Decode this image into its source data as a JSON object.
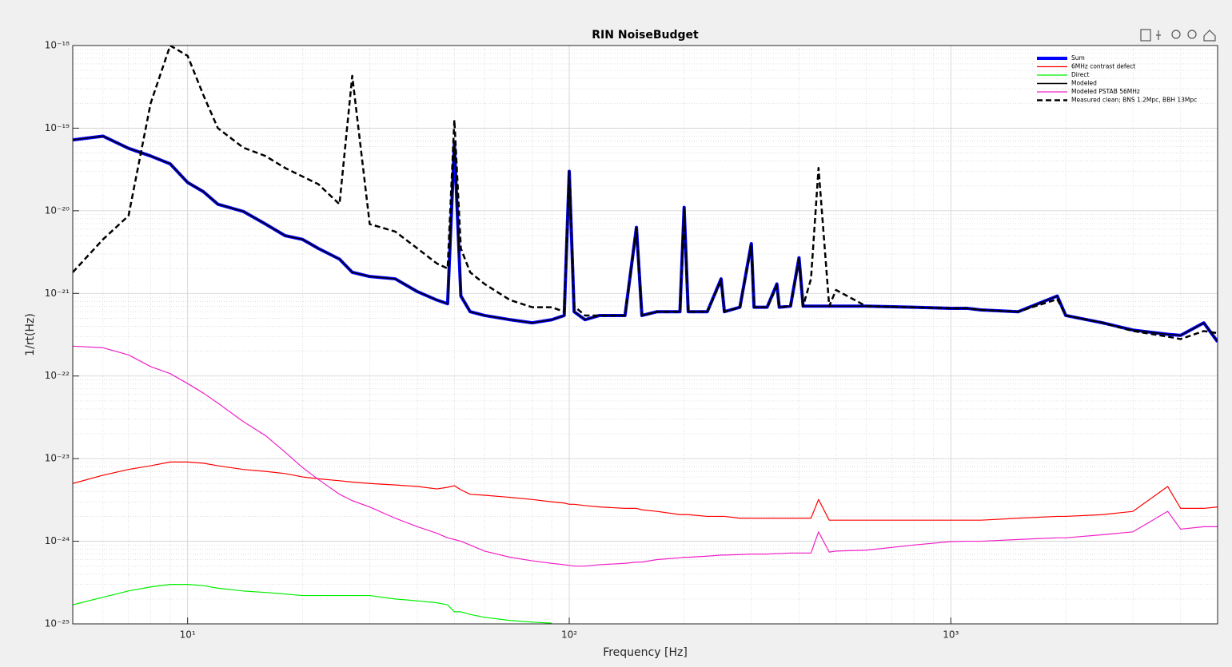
{
  "chart_data": {
    "type": "line",
    "title": "RIN NoiseBudget",
    "x_label": "Frequency [Hz]",
    "y_label": "1/rt(Hz)",
    "log_x": true,
    "log_y": true,
    "grid": true,
    "minor_grid": true,
    "legend": "upper right",
    "xlim": [
      5,
      5000
    ],
    "ylim": [
      1e-25,
      1e-18
    ],
    "xticks": [
      {
        "value": 10,
        "label": "10¹"
      },
      {
        "value": 100,
        "label": "10²"
      },
      {
        "value": 1000,
        "label": "10³"
      }
    ],
    "yticks": [
      {
        "value": 1e-25,
        "label": "10⁻²⁵"
      },
      {
        "value": 1e-24,
        "label": "10⁻²⁴"
      },
      {
        "value": 1e-23,
        "label": "10⁻²³"
      },
      {
        "value": 1e-22,
        "label": "10⁻²²"
      },
      {
        "value": 1e-21,
        "label": "10⁻²¹"
      },
      {
        "value": 1e-20,
        "label": "10⁻²⁰"
      },
      {
        "value": 1e-19,
        "label": "10⁻¹⁹"
      },
      {
        "value": 1e-18,
        "label": "10⁻¹⁸"
      }
    ],
    "x": [
      5,
      6,
      7,
      8,
      9,
      10,
      11,
      12,
      14,
      16,
      18,
      20,
      22,
      25,
      27,
      30,
      35,
      40,
      45,
      48,
      50,
      52,
      55,
      60,
      70,
      80,
      90,
      97,
      100,
      103,
      110,
      120,
      140,
      150,
      155,
      170,
      195,
      200,
      205,
      230,
      250,
      255,
      280,
      300,
      305,
      330,
      350,
      355,
      380,
      400,
      410,
      430,
      450,
      480,
      500,
      600,
      800,
      1000,
      1100,
      1200,
      1500,
      1900,
      2000,
      2500,
      3000,
      3700,
      4000,
      4600,
      5000
    ],
    "series": [
      {
        "name": "Sum",
        "color": "#0000ff",
        "line_width": 4,
        "dash": "solid",
        "values": [
          7.2e-20,
          8e-20,
          5.7e-20,
          4.6e-20,
          3.7e-20,
          2.2e-20,
          1.7e-20,
          1.2e-20,
          9.8e-21,
          6.9e-21,
          5e-21,
          4.5e-21,
          3.5e-21,
          2.6e-21,
          1.8e-21,
          1.6e-21,
          1.5e-21,
          1.05e-21,
          8.3e-22,
          7.5e-22,
          6.5e-20,
          9.3e-22,
          6e-22,
          5.4e-22,
          4.8e-22,
          4.4e-22,
          4.8e-22,
          5.4e-22,
          3e-20,
          6e-22,
          4.8e-22,
          5.4e-22,
          5.4e-22,
          6.3e-21,
          5.4e-22,
          6e-22,
          6e-22,
          1.1e-20,
          6e-22,
          6e-22,
          1.5e-21,
          6e-22,
          6.8e-22,
          4e-21,
          6.8e-22,
          6.8e-22,
          1.3e-21,
          6.8e-22,
          7e-22,
          2.7e-21,
          7e-22,
          7e-22,
          7e-22,
          7e-22,
          7e-22,
          7e-22,
          6.8e-22,
          6.6e-22,
          6.6e-22,
          6.3e-22,
          6e-22,
          9.3e-22,
          5.4e-22,
          4.4e-22,
          3.6e-22,
          3.2e-22,
          3.1e-22,
          4.4e-22,
          2.6e-22
        ]
      },
      {
        "name": "6MHz contrast defect",
        "color": "#ff0000",
        "line_width": 1.2,
        "dash": "solid",
        "values": [
          5e-24,
          6.3e-24,
          7.4e-24,
          8.2e-24,
          9.1e-24,
          9.1e-24,
          8.8e-24,
          8.2e-24,
          7.4e-24,
          7e-24,
          6.6e-24,
          6e-24,
          5.7e-24,
          5.4e-24,
          5.2e-24,
          5e-24,
          4.8e-24,
          4.6e-24,
          4.3e-24,
          4.5e-24,
          4.7e-24,
          4.2e-24,
          3.7e-24,
          3.6e-24,
          3.4e-24,
          3.2e-24,
          3e-24,
          2.9e-24,
          2.8e-24,
          2.8e-24,
          2.7e-24,
          2.6e-24,
          2.5e-24,
          2.5e-24,
          2.4e-24,
          2.3e-24,
          2.1e-24,
          2.1e-24,
          2.1e-24,
          2e-24,
          2e-24,
          2e-24,
          1.9e-24,
          1.9e-24,
          1.9e-24,
          1.9e-24,
          1.9e-24,
          1.9e-24,
          1.9e-24,
          1.9e-24,
          1.9e-24,
          1.9e-24,
          3.2e-24,
          1.8e-24,
          1.8e-24,
          1.8e-24,
          1.8e-24,
          1.8e-24,
          1.8e-24,
          1.8e-24,
          1.9e-24,
          2e-24,
          2e-24,
          2.1e-24,
          2.3e-24,
          4.6e-24,
          2.5e-24,
          2.5e-24,
          2.6e-24
        ]
      },
      {
        "name": "Direct",
        "color": "#00ee00",
        "line_width": 1.2,
        "dash": "solid",
        "values": [
          1.7e-25,
          2.1e-25,
          2.5e-25,
          2.8e-25,
          3e-25,
          3e-25,
          2.9e-25,
          2.7e-25,
          2.5e-25,
          2.4e-25,
          2.3e-25,
          2.2e-25,
          2.2e-25,
          2.2e-25,
          2.2e-25,
          2.2e-25,
          2e-25,
          1.9e-25,
          1.8e-25,
          1.7e-25,
          1.4e-25,
          1.4e-25,
          1.3e-25,
          1.2e-25,
          1.1e-25,
          1.05e-25,
          1.02e-25,
          null,
          null,
          null,
          null,
          null,
          null,
          null,
          null,
          null,
          null,
          null,
          null,
          null,
          null,
          null,
          null,
          null,
          null,
          null,
          null,
          null,
          null,
          null,
          null,
          null,
          null,
          null,
          null,
          null,
          null,
          null,
          null,
          null,
          null,
          null,
          null,
          null,
          null,
          null,
          null,
          null,
          null
        ]
      },
      {
        "name": "Modeled",
        "color": "#000000",
        "line_width": 1.5,
        "dash": "solid",
        "values": [
          7.2e-20,
          8e-20,
          5.7e-20,
          4.6e-20,
          3.7e-20,
          2.2e-20,
          1.7e-20,
          1.2e-20,
          9.8e-21,
          6.9e-21,
          5e-21,
          4.5e-21,
          3.5e-21,
          2.6e-21,
          1.8e-21,
          1.6e-21,
          1.5e-21,
          1.05e-21,
          8.3e-22,
          7.5e-22,
          6.5e-20,
          9.3e-22,
          6e-22,
          5.4e-22,
          4.8e-22,
          4.4e-22,
          4.8e-22,
          5.4e-22,
          3e-20,
          6e-22,
          4.8e-22,
          5.4e-22,
          5.4e-22,
          6.3e-21,
          5.4e-22,
          6e-22,
          6e-22,
          1.1e-20,
          6e-22,
          6e-22,
          1.5e-21,
          6e-22,
          6.8e-22,
          4e-21,
          6.8e-22,
          6.8e-22,
          1.3e-21,
          6.8e-22,
          7e-22,
          2.7e-21,
          7e-22,
          7e-22,
          7e-22,
          7e-22,
          7e-22,
          7e-22,
          6.8e-22,
          6.6e-22,
          6.6e-22,
          6.3e-22,
          6e-22,
          9.3e-22,
          5.4e-22,
          4.4e-22,
          3.6e-22,
          3.2e-22,
          3.1e-22,
          4.4e-22,
          2.6e-22
        ]
      },
      {
        "name": "Modeled PSTAB 56MHz",
        "color": "#f020c8",
        "line_width": 1.2,
        "dash": "solid",
        "values": [
          2.3e-22,
          2.2e-22,
          1.8e-22,
          1.3e-22,
          1.07e-22,
          8.1e-23,
          6.2e-23,
          4.7e-23,
          2.8e-23,
          1.9e-23,
          1.2e-23,
          7.8e-24,
          5.6e-24,
          3.7e-24,
          3.1e-24,
          2.6e-24,
          1.9e-24,
          1.5e-24,
          1.25e-24,
          1.1e-24,
          1.05e-24,
          1e-24,
          9e-25,
          7.6e-25,
          6.4e-25,
          5.8e-25,
          5.4e-25,
          5.2e-25,
          5.1e-25,
          5e-25,
          5e-25,
          5.2e-25,
          5.4e-25,
          5.6e-25,
          5.6e-25,
          6e-25,
          6.3e-25,
          6.4e-25,
          6.4e-25,
          6.6e-25,
          6.8e-25,
          6.8e-25,
          6.9e-25,
          7e-25,
          7e-25,
          7e-25,
          7.1e-25,
          7.1e-25,
          7.2e-25,
          7.2e-25,
          7.2e-25,
          7.2e-25,
          1.3e-24,
          7.4e-25,
          7.6e-25,
          7.8e-25,
          9e-25,
          9.9e-25,
          1e-24,
          1e-24,
          1.05e-24,
          1.1e-24,
          1.1e-24,
          1.2e-24,
          1.3e-24,
          2.3e-24,
          1.4e-24,
          1.5e-24,
          1.5e-24
        ]
      },
      {
        "name": "Measured clean; BNS 1.2Mpc, BBH 13Mpc",
        "color": "#000000",
        "line_width": 2.5,
        "dash": "dashed",
        "values": [
          1.8e-21,
          4.5e-21,
          8.7e-21,
          2e-19,
          1e-18,
          7.5e-19,
          2.5e-19,
          1e-19,
          5.8e-20,
          4.6e-20,
          3.3e-20,
          2.6e-20,
          2.1e-20,
          1.2e-20,
          4.3e-19,
          6.9e-21,
          5.6e-21,
          3.5e-21,
          2.3e-21,
          2e-21,
          1.26e-19,
          3.5e-21,
          1.8e-21,
          1.3e-21,
          8.3e-22,
          6.8e-22,
          6.8e-22,
          6e-22,
          3e-20,
          7e-22,
          5.4e-22,
          5.4e-22,
          5.4e-22,
          6e-21,
          5.4e-22,
          6e-22,
          6e-22,
          1e-20,
          6e-22,
          6e-22,
          1.4e-21,
          6e-22,
          6.8e-22,
          3.8e-21,
          6.8e-22,
          6.8e-22,
          1.2e-21,
          6.8e-22,
          7e-22,
          2.5e-21,
          7e-22,
          1.5e-21,
          3.3e-20,
          7e-22,
          1.1e-21,
          7e-22,
          6.8e-22,
          6.6e-22,
          6.6e-22,
          6.3e-22,
          6e-22,
          8.5e-22,
          5.4e-22,
          4.4e-22,
          3.5e-22,
          3e-22,
          2.8e-22,
          3.5e-22,
          3.3e-22
        ]
      }
    ]
  }
}
